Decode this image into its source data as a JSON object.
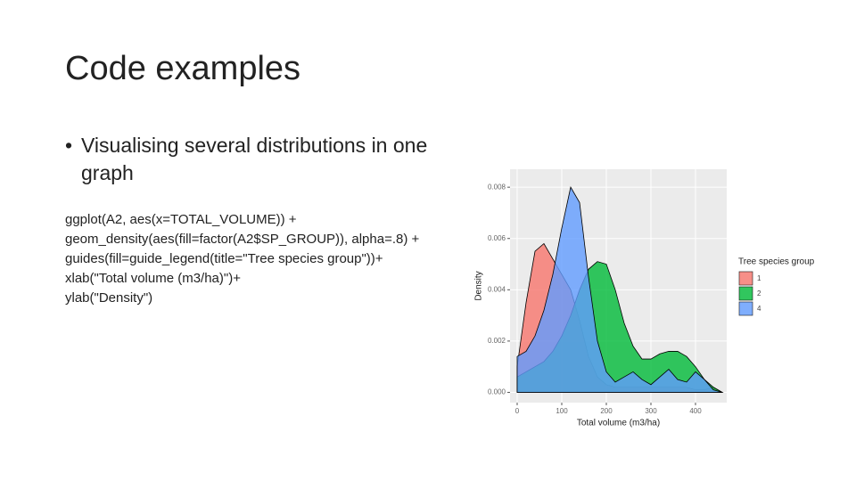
{
  "title": "Code examples",
  "bullet": "Visualising several distributions in one graph",
  "code": [
    "ggplot(A2, aes(x=TOTAL_VOLUME)) +",
    "geom_density(aes(fill=factor(A2$SP_GROUP)), alpha=.8) +",
    "guides(fill=guide_legend(title=\"Tree species group\"))+",
    "xlab(\"Total volume (m3/ha)\")+",
    "ylab(\"Density\")"
  ],
  "chart_data": {
    "type": "area",
    "x_label": "Total volume (m3/ha)",
    "y_label": "Density",
    "legend_title": "Tree species group",
    "legend": "right",
    "grid": true,
    "x": [
      0,
      20,
      40,
      60,
      80,
      100,
      120,
      140,
      160,
      180,
      200,
      220,
      240,
      260,
      280,
      300,
      320,
      340,
      360,
      380,
      400,
      420,
      440,
      460
    ],
    "series": [
      {
        "name": "1",
        "color": "#f8766d",
        "values": [
          0.001,
          0.0035,
          0.0055,
          0.0058,
          0.0052,
          0.0046,
          0.004,
          0.0028,
          0.0014,
          0.0006,
          0.0003,
          0.0002,
          0.0002,
          0.0002,
          0.0002,
          0.0002,
          0.0002,
          0.0002,
          0.0002,
          0.0002,
          0.0001,
          0.0001,
          0.0002,
          0.0
        ]
      },
      {
        "name": "2",
        "color": "#00ba38",
        "values": [
          0.0006,
          0.0008,
          0.001,
          0.0012,
          0.0016,
          0.0022,
          0.003,
          0.004,
          0.0048,
          0.0051,
          0.005,
          0.004,
          0.0027,
          0.0018,
          0.0013,
          0.0013,
          0.0015,
          0.0016,
          0.0016,
          0.0014,
          0.001,
          0.0005,
          0.0002,
          0.0
        ]
      },
      {
        "name": "4",
        "color": "#619cff",
        "values": [
          0.0014,
          0.0016,
          0.0022,
          0.0032,
          0.0046,
          0.0064,
          0.008,
          0.0074,
          0.0045,
          0.002,
          0.0008,
          0.0004,
          0.0006,
          0.0008,
          0.0005,
          0.0003,
          0.0006,
          0.0009,
          0.0005,
          0.0004,
          0.0008,
          0.0005,
          0.0001,
          0.0
        ]
      }
    ],
    "xlim": [
      -16,
      470
    ],
    "xticks": [
      0,
      100,
      200,
      300,
      400
    ],
    "ylim": [
      -0.0004,
      0.0087
    ],
    "yticks": [
      {
        "value": 0,
        "label": "0.000"
      },
      {
        "value": 0.002,
        "label": "0.002"
      },
      {
        "value": 0.004,
        "label": "0.004"
      },
      {
        "value": 0.006,
        "label": "0.006"
      },
      {
        "value": 0.008,
        "label": "0.008"
      }
    ]
  }
}
